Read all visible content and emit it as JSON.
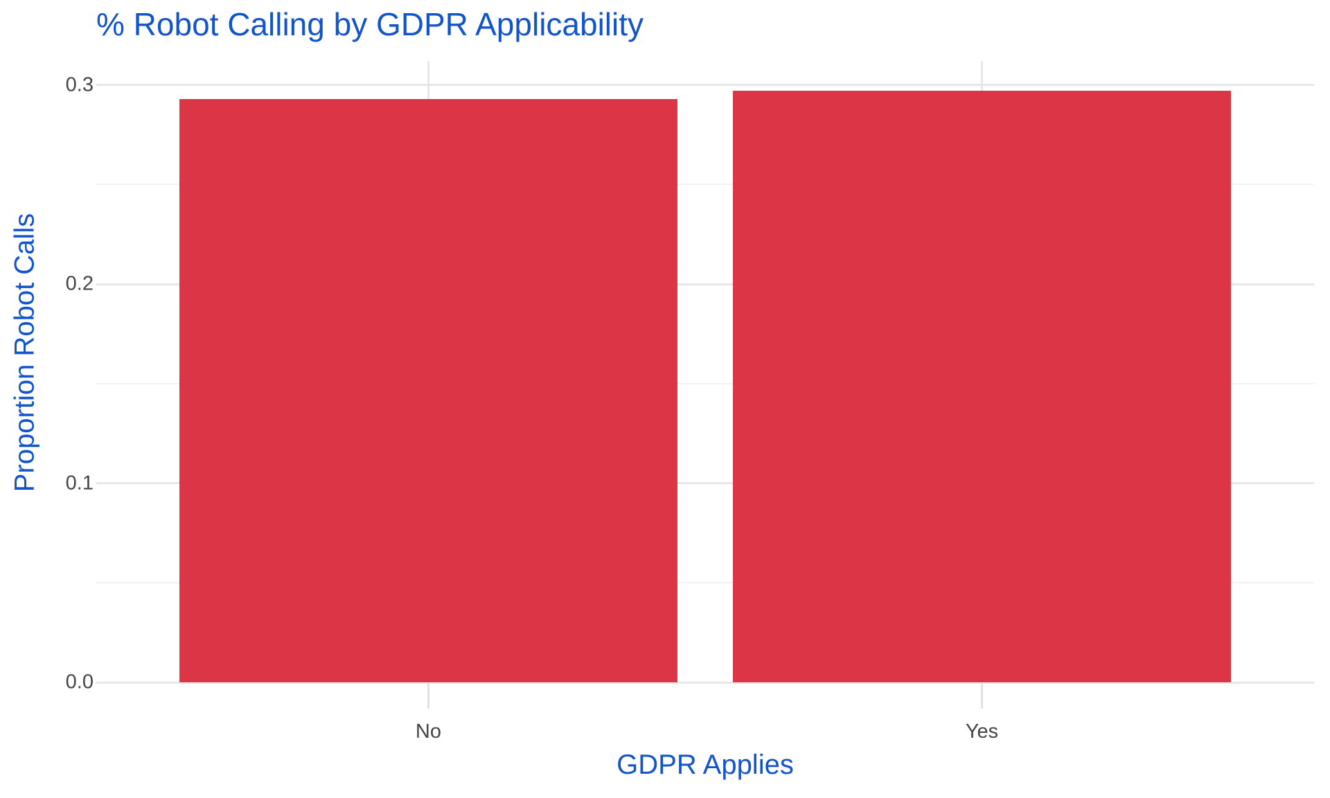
{
  "title": "% Robot Calling by GDPR Applicability",
  "chart_data": {
    "type": "bar",
    "title": "% Robot Calling by GDPR Applicability",
    "xlabel": "GDPR Applies",
    "ylabel": "Proportion Robot Calls",
    "categories": [
      "No",
      "Yes"
    ],
    "values": [
      0.293,
      0.297
    ],
    "ylim": [
      0,
      0.312
    ],
    "yticks": [
      0.0,
      0.1,
      0.2,
      0.3
    ],
    "ytick_labels": [
      "0.0",
      "0.1",
      "0.2",
      "0.3"
    ],
    "yticks_minor": [
      0.05,
      0.15,
      0.25
    ],
    "grid": "horizontal major+minor, vertical major at category centers",
    "legend_position": "none",
    "background": "#FFFFFF"
  },
  "colors": {
    "bar_fill": "#DC3545",
    "title_text": "#1254CC",
    "axis_title_text": "#1254CC",
    "tick_label_text": "#444444",
    "grid_major": "#E7E7E7",
    "grid_minor": "#F2F2F2",
    "tick_mark": "#E2E2E2"
  }
}
